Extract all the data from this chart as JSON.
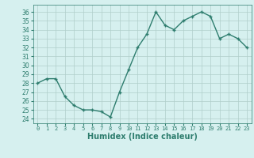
{
  "x": [
    0,
    1,
    2,
    3,
    4,
    5,
    6,
    7,
    8,
    9,
    10,
    11,
    12,
    13,
    14,
    15,
    16,
    17,
    18,
    19,
    20,
    21,
    22,
    23
  ],
  "y": [
    28,
    28.5,
    28.5,
    26.5,
    25.5,
    25,
    25,
    24.8,
    24.2,
    27,
    29.5,
    32,
    33.5,
    36,
    34.5,
    34,
    35,
    35.5,
    36,
    35.5,
    33,
    33.5,
    33,
    32
  ],
  "line_color": "#2e7d6e",
  "marker": "+",
  "marker_size": 3.5,
  "bg_color": "#d6f0ef",
  "grid_color": "#b0ceca",
  "xlabel": "Humidex (Indice chaleur)",
  "xlim": [
    -0.5,
    23.5
  ],
  "ylim": [
    23.5,
    36.8
  ],
  "yticks": [
    24,
    25,
    26,
    27,
    28,
    29,
    30,
    31,
    32,
    33,
    34,
    35,
    36
  ],
  "xticks": [
    0,
    1,
    2,
    3,
    4,
    5,
    6,
    7,
    8,
    9,
    10,
    11,
    12,
    13,
    14,
    15,
    16,
    17,
    18,
    19,
    20,
    21,
    22,
    23
  ],
  "ytick_fontsize": 5.5,
  "xtick_fontsize": 5.0,
  "xlabel_fontsize": 7.0,
  "linewidth": 1.0,
  "markeredgewidth": 1.0
}
